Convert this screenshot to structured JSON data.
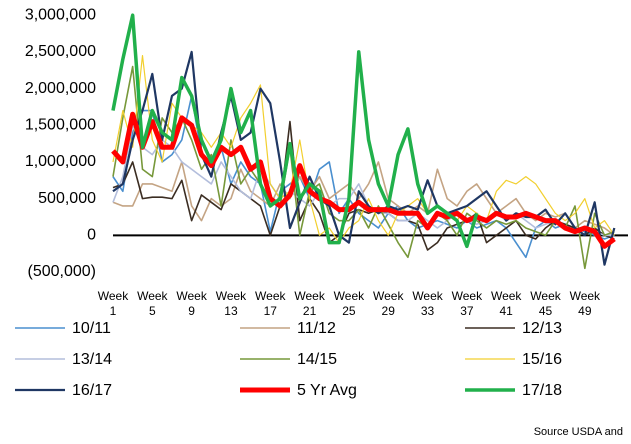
{
  "chart_data": {
    "type": "line",
    "categories": [
      "Week 1",
      null,
      null,
      null,
      "Week 5",
      null,
      null,
      null,
      "Week 9",
      null,
      null,
      null,
      "Week 13",
      null,
      null,
      null,
      "Week 17",
      null,
      null,
      null,
      "Week 21",
      null,
      null,
      null,
      "Week 25",
      null,
      null,
      null,
      "Week 29",
      null,
      null,
      null,
      "Week 33",
      null,
      null,
      null,
      "Week 37",
      null,
      null,
      null,
      "Week 41",
      null,
      null,
      null,
      "Week 45",
      null,
      null,
      null,
      "Week 49",
      null,
      null,
      null
    ],
    "ylim": [
      -500000,
      3000000
    ],
    "yticks": [
      {
        "value": -500000,
        "label": "(500,000)"
      },
      0,
      {
        "value": 500000,
        "label": "500,000"
      },
      {
        "value": 1000000,
        "label": "1,000,000"
      },
      {
        "value": 1500000,
        "label": "1,500,000"
      },
      {
        "value": 2000000,
        "label": "2,000,000"
      },
      {
        "value": 2500000,
        "label": "2,500,000"
      },
      {
        "value": 3000000,
        "label": "3,000,000"
      }
    ],
    "grid": false,
    "legend": "bottom",
    "annotation": "Source USDA and",
    "series": [
      {
        "name": "10/11",
        "color": "#4a8fcf",
        "width": 1.6,
        "values": [
          800000,
          600000,
          1400000,
          1700000,
          1700000,
          1000000,
          1100000,
          1300000,
          1900000,
          1100000,
          1000000,
          1200000,
          700000,
          1000000,
          800000,
          700000,
          50000,
          600000,
          700000,
          800000,
          500000,
          900000,
          1000000,
          300000,
          500000,
          300000,
          200000,
          100000,
          300000,
          400000,
          200000,
          100000,
          150000,
          200000,
          150000,
          100000,
          200000,
          100000,
          150000,
          200000,
          100000,
          -100000,
          -300000,
          100000,
          200000,
          100000,
          150000,
          100000,
          50000,
          0,
          -50000,
          0
        ]
      },
      {
        "name": "11/12",
        "color": "#c4a484",
        "width": 1.6,
        "values": [
          450000,
          400000,
          400000,
          700000,
          700000,
          650000,
          600000,
          1000000,
          400000,
          200000,
          500000,
          400000,
          500000,
          900000,
          600000,
          500000,
          400000,
          700000,
          500000,
          800000,
          600000,
          800000,
          500000,
          600000,
          700000,
          500000,
          700000,
          1000000,
          500000,
          400000,
          300000,
          400000,
          300000,
          900000,
          500000,
          400000,
          600000,
          700000,
          500000,
          300000,
          400000,
          500000,
          300000,
          200000,
          300000,
          250000,
          300000,
          100000,
          200000,
          150000,
          100000,
          0
        ]
      },
      {
        "name": "12/13",
        "color": "#3b2d22",
        "width": 1.6,
        "values": [
          650000,
          700000,
          1000000,
          500000,
          520000,
          520000,
          500000,
          750000,
          200000,
          550000,
          450000,
          350000,
          700000,
          600000,
          500000,
          400000,
          0,
          400000,
          1550000,
          200000,
          500000,
          300000,
          -100000,
          0,
          300000,
          350000,
          300000,
          350000,
          300000,
          200000,
          200000,
          150000,
          -200000,
          -100000,
          100000,
          150000,
          200000,
          300000,
          -100000,
          0,
          100000,
          200000,
          0,
          -50000,
          100000,
          200000,
          150000,
          100000,
          0,
          100000,
          0,
          -50000
        ]
      },
      {
        "name": "13/14",
        "color": "#b3bedc",
        "width": 1.6,
        "values": [
          450000,
          800000,
          1500000,
          1200000,
          1100000,
          1300000,
          1200000,
          1000000,
          900000,
          800000,
          700000,
          1000000,
          800000,
          600000,
          500000,
          900000,
          700000,
          500000,
          600000,
          500000,
          400000,
          600000,
          400000,
          500000,
          500000,
          700000,
          400000,
          300000,
          300000,
          200000,
          200000,
          300000,
          200000,
          100000,
          200000,
          300000,
          200000,
          150000,
          200000,
          300000,
          200000,
          300000,
          200000,
          100000,
          150000,
          200000,
          100000,
          50000,
          100000,
          50000,
          0,
          0
        ]
      },
      {
        "name": "14/15",
        "color": "#77983a",
        "width": 1.6,
        "values": [
          800000,
          1600000,
          2300000,
          900000,
          800000,
          1600000,
          1400000,
          1600000,
          1300000,
          900000,
          1100000,
          400000,
          1300000,
          700000,
          900000,
          700000,
          500000,
          400000,
          1200000,
          0,
          600000,
          700000,
          300000,
          200000,
          200000,
          350000,
          100000,
          400000,
          150000,
          -100000,
          -300000,
          200000,
          100000,
          300000,
          200000,
          0,
          300000,
          200000,
          100000,
          200000,
          150000,
          200000,
          100000,
          50000,
          0,
          200000,
          100000,
          400000,
          -450000,
          300000,
          0,
          50000
        ]
      },
      {
        "name": "15/16",
        "color": "#f2cf2e",
        "width": 1.2,
        "values": [
          1000000,
          1700000,
          1200000,
          2450000,
          1300000,
          1000000,
          1800000,
          1600000,
          1500000,
          1400000,
          1200000,
          1400000,
          1200000,
          1600000,
          1800000,
          2050000,
          700000,
          500000,
          600000,
          1300000,
          500000,
          0,
          100000,
          -100000,
          100000,
          200000,
          500000,
          200000,
          0,
          300000,
          400000,
          500000,
          300000,
          400000,
          300000,
          200000,
          400000,
          300000,
          200000,
          600000,
          750000,
          700000,
          800000,
          700000,
          500000,
          300000,
          200000,
          300000,
          500000,
          100000,
          200000,
          0
        ]
      },
      {
        "name": "16/17",
        "color": "#1f3763",
        "width": 2.2,
        "values": [
          600000,
          700000,
          1300000,
          1700000,
          2200000,
          1300000,
          1900000,
          2000000,
          2500000,
          1100000,
          800000,
          1400000,
          1900000,
          1300000,
          1400000,
          2000000,
          1800000,
          1000000,
          100000,
          450000,
          800000,
          500000,
          400000,
          0,
          -100000,
          600000,
          400000,
          300000,
          400000,
          350000,
          400000,
          350000,
          750000,
          400000,
          300000,
          350000,
          400000,
          500000,
          600000,
          400000,
          200000,
          300000,
          250000,
          250000,
          350000,
          150000,
          300000,
          100000,
          0,
          450000,
          -400000,
          100000
        ]
      },
      {
        "name": "5 Yr Avg",
        "color": "#ff0000",
        "width": 5,
        "values": [
          1150000,
          1000000,
          1650000,
          1200000,
          1550000,
          1200000,
          1200000,
          1600000,
          1500000,
          1100000,
          950000,
          1200000,
          1100000,
          1200000,
          900000,
          1000000,
          500000,
          400000,
          550000,
          950000,
          600000,
          500000,
          450000,
          350000,
          350000,
          450000,
          350000,
          350000,
          350000,
          300000,
          300000,
          300000,
          100000,
          300000,
          250000,
          300000,
          200000,
          250000,
          200000,
          300000,
          250000,
          250000,
          300000,
          250000,
          200000,
          200000,
          100000,
          50000,
          100000,
          50000,
          -150000,
          -50000
        ]
      },
      {
        "name": "17/18",
        "color": "#21b04b",
        "width": 3.5,
        "values": [
          1700000,
          2400000,
          3000000,
          1200000,
          1700000,
          1400000,
          1300000,
          2150000,
          1900000,
          1300000,
          1000000,
          1300000,
          2000000,
          1400000,
          1700000,
          700000,
          400000,
          500000,
          1250000,
          500000,
          700000,
          600000,
          -100000,
          -100000,
          500000,
          2500000,
          1300000,
          700000,
          400000,
          1100000,
          1450000,
          700000,
          300000,
          400000,
          300000,
          200000,
          -150000,
          300000,
          null,
          null,
          null,
          null,
          null,
          null,
          null,
          null,
          null,
          null,
          null,
          null,
          null,
          null
        ]
      }
    ]
  }
}
